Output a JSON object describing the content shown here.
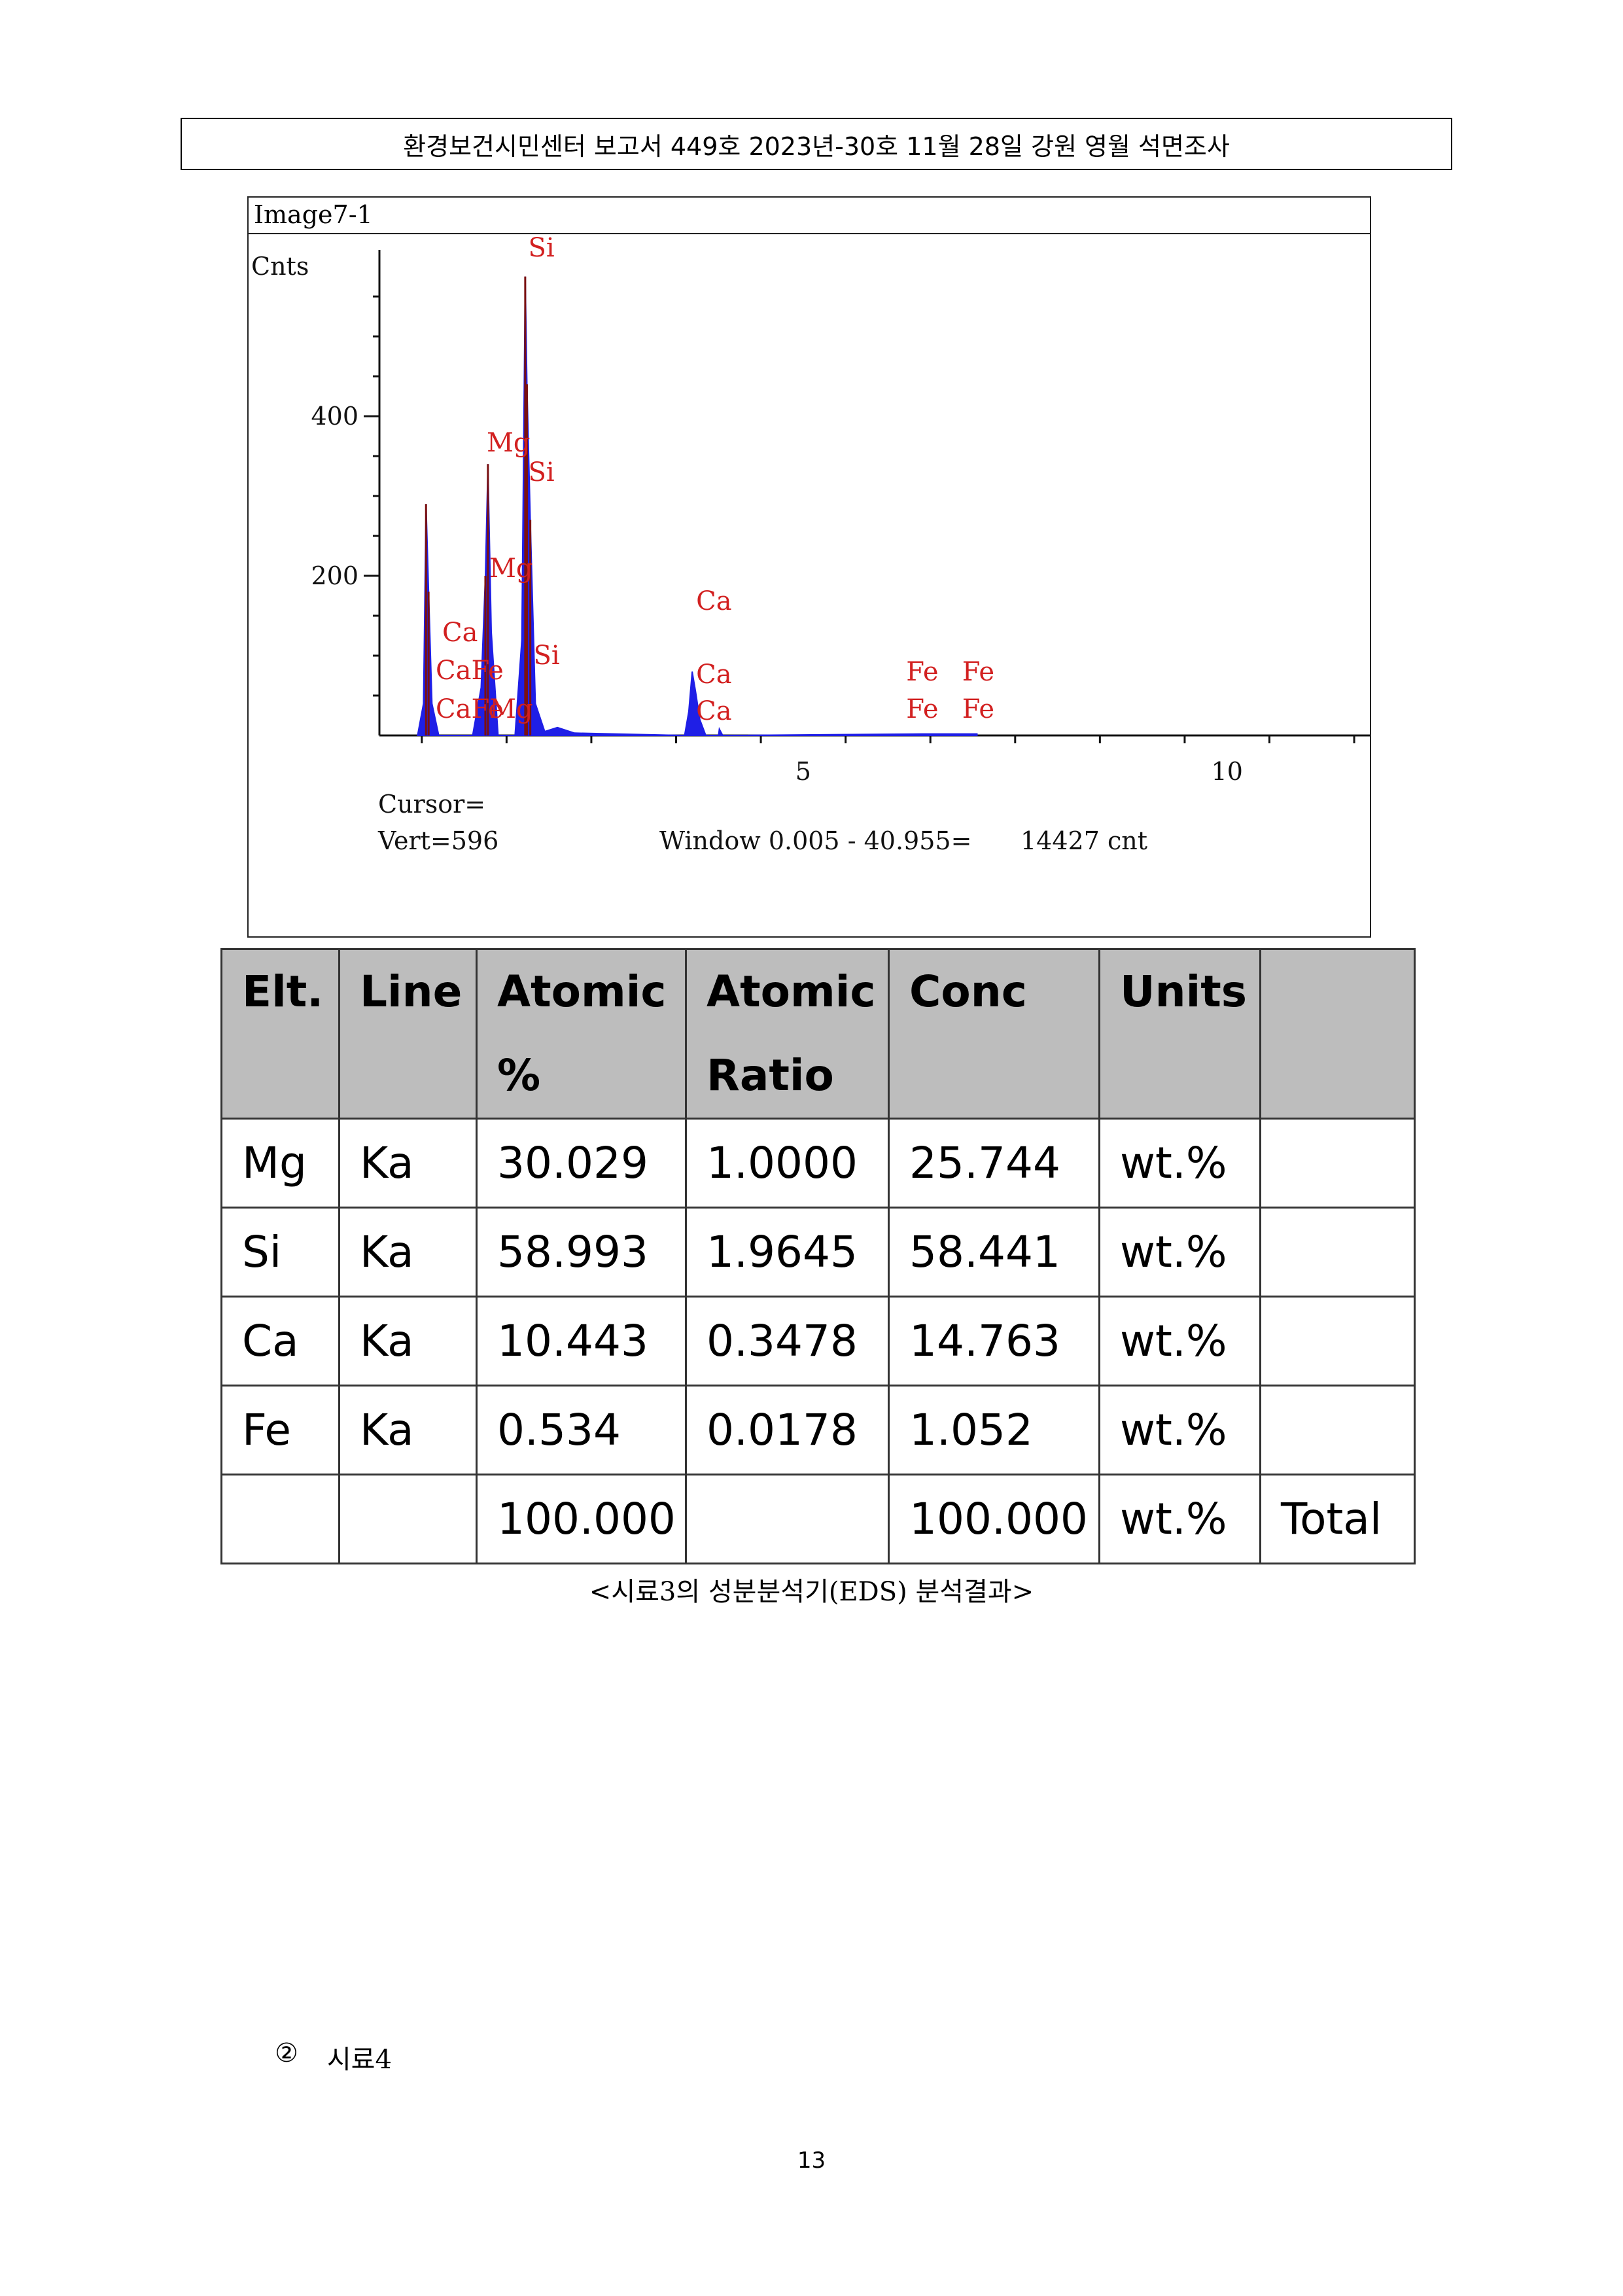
{
  "header": {
    "title": "환경보건시민센터 보고서 449호 2023년-30호 11월 28일 강원 영월 석면조사"
  },
  "spectrum": {
    "image_title": "Image7-1",
    "y_axis_label": "Cnts",
    "y_ticks": [
      "400",
      "200"
    ],
    "x_ticks": [
      "5",
      "10"
    ],
    "peak_labels": [
      "Si",
      "Mg",
      "Si",
      "Mg",
      "Ca",
      "Ca",
      "CaFe",
      "CaFe",
      "Si",
      "Mg",
      "Ca",
      "Ca",
      "Fe",
      "Fe",
      "Fe",
      "Fe"
    ],
    "cursor_label": "Cursor=",
    "vert_label": "Vert=596",
    "window_label": "Window 0.005 - 40.955=",
    "count_label": "14427 cnt",
    "colors": {
      "spectrum": "#1f1fe6",
      "peak_labels": "#d22020"
    }
  },
  "chart_data": {
    "type": "area",
    "title": "Image7-1",
    "ylabel": "Cnts",
    "xlabel": "",
    "xlim": [
      0,
      11.7
    ],
    "ylim": [
      0,
      596
    ],
    "x_ticks": [
      5,
      10
    ],
    "y_ticks": [
      200,
      400
    ],
    "series": [
      {
        "x": [
          0.45,
          0.52,
          0.55,
          0.58,
          0.62,
          0.7,
          1.1,
          1.2,
          1.25,
          1.28,
          1.32,
          1.4,
          1.6,
          1.68,
          1.72,
          1.74,
          1.78,
          1.84,
          1.95,
          2.1,
          2.3,
          3.6,
          3.65,
          3.69,
          3.73,
          3.78,
          3.85,
          4.0,
          4.01,
          4.05,
          6.4,
          7.05
        ],
        "y": [
          0,
          40,
          290,
          180,
          40,
          0,
          0,
          60,
          200,
          340,
          130,
          0,
          0,
          120,
          575,
          440,
          270,
          40,
          5,
          10,
          3,
          0,
          30,
          80,
          55,
          20,
          0,
          0,
          8,
          0,
          2,
          2
        ]
      }
    ],
    "peaks": [
      {
        "element": "Ca",
        "energy": 0.34
      },
      {
        "element": "Fe",
        "energy": 0.71
      },
      {
        "element": "Mg",
        "energy": 1.25
      },
      {
        "element": "Si",
        "energy": 1.74
      },
      {
        "element": "Ca",
        "energy": 3.69
      },
      {
        "element": "Ca",
        "energy": 4.01
      },
      {
        "element": "Fe",
        "energy": 6.4
      },
      {
        "element": "Fe",
        "energy": 7.06
      }
    ]
  },
  "table": {
    "headers": [
      "Elt.",
      "Line",
      "Atomic\n%",
      "Atomic\nRatio",
      "Conc",
      "Units",
      ""
    ],
    "rows": [
      [
        "Mg",
        "Ka",
        "30.029",
        "1.0000",
        "25.744",
        "wt.%",
        ""
      ],
      [
        "Si",
        "Ka",
        "58.993",
        "1.9645",
        "58.441",
        "wt.%",
        ""
      ],
      [
        "Ca",
        "Ka",
        "10.443",
        "0.3478",
        "14.763",
        "wt.%",
        ""
      ],
      [
        "Fe",
        "Ka",
        "0.534",
        "0.0178",
        "1.052",
        "wt.%",
        ""
      ],
      [
        "",
        "",
        "100.000",
        "",
        "100.000",
        "wt.%",
        "Total"
      ]
    ]
  },
  "caption": "<시료3의 성분분석기(EDS) 분석결과>",
  "sample4": {
    "marker": "②",
    "label": "시료4"
  },
  "page_number": "13"
}
